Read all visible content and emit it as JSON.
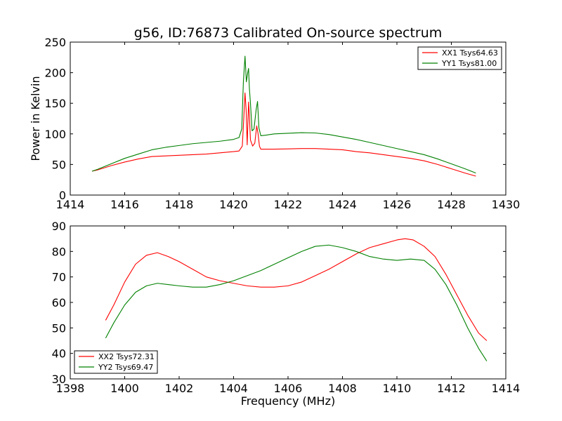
{
  "figure": {
    "title": "g56, ID:76873 Calibrated On-source spectrum"
  },
  "chart_data": [
    {
      "type": "line",
      "title": "g56, ID:76873 Calibrated On-source spectrum",
      "xlabel": "",
      "ylabel": "Power in Kelvin",
      "xlim": [
        1414,
        1430
      ],
      "ylim": [
        0,
        250
      ],
      "xticks": [
        1414,
        1416,
        1418,
        1420,
        1422,
        1424,
        1426,
        1428,
        1430
      ],
      "yticks": [
        0,
        50,
        100,
        150,
        200,
        250
      ],
      "legend_position": "top-right",
      "grid": false,
      "series": [
        {
          "name": "XX1 Tsys64.63",
          "color": "#ff0000",
          "x": [
            1414.8,
            1415.0,
            1415.5,
            1416.0,
            1416.5,
            1417.0,
            1417.5,
            1418.0,
            1418.5,
            1419.0,
            1419.5,
            1420.0,
            1420.2,
            1420.32,
            1420.38,
            1420.42,
            1420.46,
            1420.5,
            1420.52,
            1420.55,
            1420.58,
            1420.62,
            1420.7,
            1420.78,
            1420.85,
            1420.9,
            1420.95,
            1421.0,
            1421.1,
            1421.3,
            1421.5,
            1422.0,
            1422.5,
            1423.0,
            1423.5,
            1424.0,
            1424.5,
            1425.0,
            1425.5,
            1426.0,
            1426.5,
            1427.0,
            1427.5,
            1428.0,
            1428.5,
            1428.9
          ],
          "y": [
            39,
            41,
            48,
            54,
            59,
            63,
            64,
            65,
            66,
            67,
            69,
            71,
            72,
            80,
            130,
            167,
            140,
            82,
            110,
            152,
            130,
            90,
            80,
            85,
            113,
            100,
            80,
            75,
            75,
            75,
            75,
            75.5,
            76,
            76,
            75,
            74,
            71,
            69,
            66,
            63,
            60,
            56,
            50,
            43,
            36,
            31
          ]
        },
        {
          "name": "YY1 Tsys81.00",
          "color": "#008000",
          "x": [
            1414.8,
            1415.0,
            1415.5,
            1416.0,
            1416.5,
            1417.0,
            1417.5,
            1418.0,
            1418.5,
            1419.0,
            1419.5,
            1420.0,
            1420.2,
            1420.3,
            1420.36,
            1420.42,
            1420.47,
            1420.52,
            1420.55,
            1420.58,
            1420.62,
            1420.68,
            1420.75,
            1420.83,
            1420.88,
            1420.93,
            1421.0,
            1421.2,
            1421.5,
            1422.0,
            1422.5,
            1423.0,
            1423.5,
            1424.0,
            1424.5,
            1425.0,
            1425.5,
            1426.0,
            1426.5,
            1427.0,
            1427.5,
            1428.0,
            1428.5,
            1428.9
          ],
          "y": [
            39,
            42,
            51,
            60,
            67,
            74,
            78,
            81,
            84,
            86,
            88,
            91,
            94,
            108,
            185,
            227,
            185,
            200,
            207,
            175,
            150,
            105,
            108,
            140,
            153,
            110,
            97,
            98,
            100,
            101,
            102,
            101.5,
            99,
            95,
            91,
            86,
            81,
            76,
            71,
            66,
            59,
            51,
            43,
            36
          ]
        }
      ]
    },
    {
      "type": "line",
      "title": "",
      "xlabel": "Frequency (MHz)",
      "ylabel": "",
      "xlim": [
        1398,
        1414
      ],
      "ylim": [
        30,
        90
      ],
      "xticks": [
        1398,
        1400,
        1402,
        1404,
        1406,
        1408,
        1410,
        1412,
        1414
      ],
      "yticks": [
        30,
        40,
        50,
        60,
        70,
        80,
        90
      ],
      "legend_position": "bottom-left",
      "grid": false,
      "series": [
        {
          "name": "XX2 Tsys72.31",
          "color": "#ff0000",
          "x": [
            1399.3,
            1399.6,
            1400.0,
            1400.4,
            1400.8,
            1401.2,
            1401.6,
            1402.0,
            1402.5,
            1403.0,
            1403.5,
            1404.0,
            1404.5,
            1405.0,
            1405.5,
            1406.0,
            1406.5,
            1407.0,
            1407.5,
            1408.0,
            1408.5,
            1409.0,
            1409.5,
            1410.0,
            1410.3,
            1410.6,
            1411.0,
            1411.4,
            1411.8,
            1412.2,
            1412.6,
            1413.0,
            1413.3
          ],
          "y": [
            53,
            59,
            68,
            75,
            78.5,
            79.5,
            78,
            76,
            73,
            70,
            68.5,
            67.5,
            66.5,
            66,
            66,
            66.5,
            68,
            70.5,
            73,
            76,
            79,
            81.5,
            83,
            84.5,
            85,
            84.5,
            82,
            78,
            71,
            63,
            55,
            48,
            45
          ]
        },
        {
          "name": "YY2 Tsys69.47",
          "color": "#008000",
          "x": [
            1399.3,
            1399.6,
            1400.0,
            1400.4,
            1400.8,
            1401.2,
            1401.6,
            1402.0,
            1402.5,
            1403.0,
            1403.5,
            1404.0,
            1404.5,
            1405.0,
            1405.5,
            1406.0,
            1406.5,
            1407.0,
            1407.5,
            1408.0,
            1408.5,
            1409.0,
            1409.5,
            1410.0,
            1410.5,
            1411.0,
            1411.4,
            1411.8,
            1412.2,
            1412.6,
            1413.0,
            1413.3
          ],
          "y": [
            46,
            52,
            59,
            64,
            66.5,
            67.5,
            67,
            66.5,
            66,
            66,
            67,
            68.5,
            70.5,
            72.5,
            75,
            77.5,
            80,
            82,
            82.5,
            81.5,
            80,
            78,
            77,
            76.5,
            77,
            76.5,
            73,
            67,
            59,
            50,
            42,
            37
          ]
        }
      ]
    }
  ]
}
